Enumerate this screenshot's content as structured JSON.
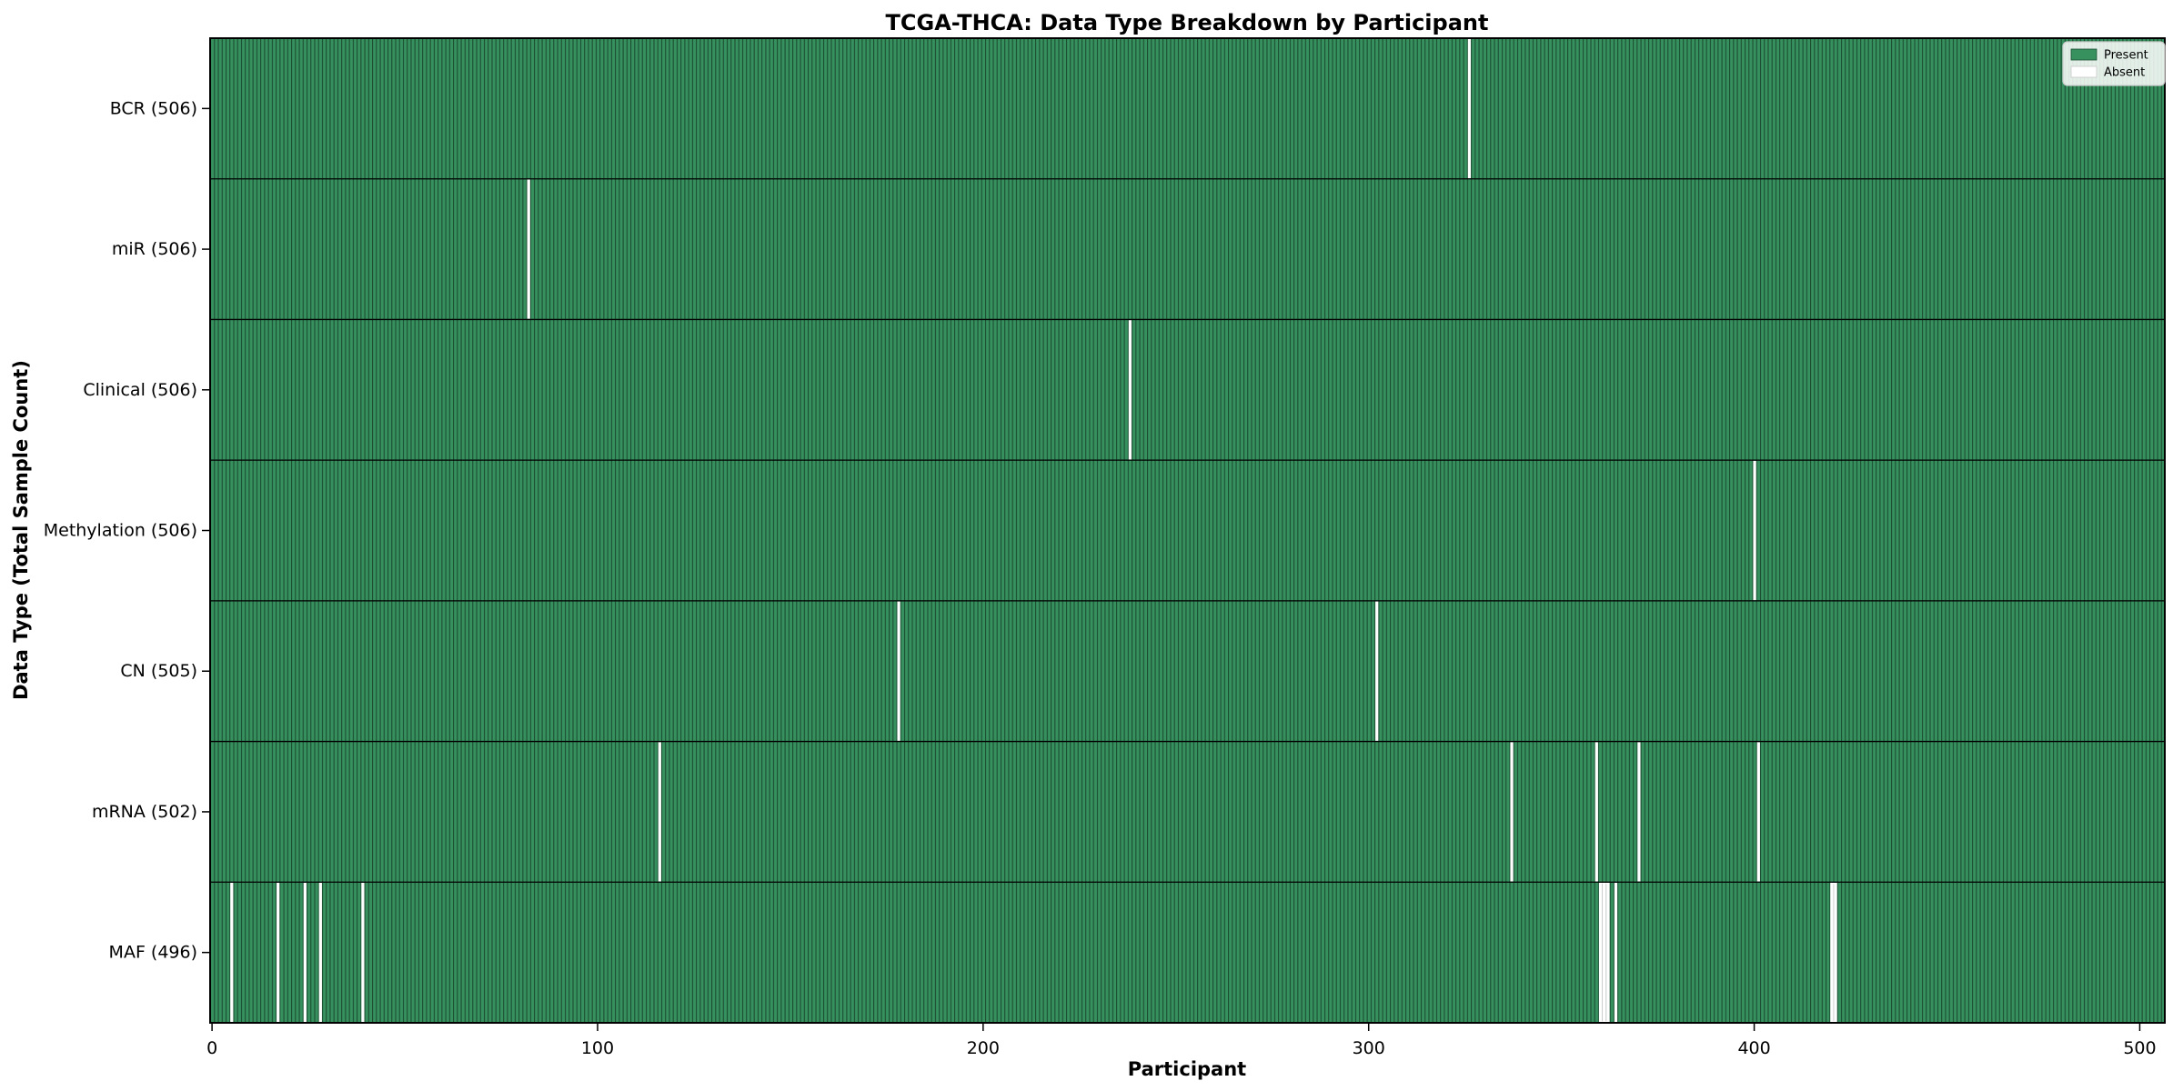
{
  "chart_data": {
    "type": "heatmap",
    "title": "TCGA-THCA: Data Type Breakdown by Participant",
    "xlabel": "Participant",
    "ylabel": "Data Type (Total Sample Count)",
    "n_participants": 507,
    "xlim": [
      -0.5,
      506.5
    ],
    "x_ticks": [
      0,
      100,
      200,
      300,
      400,
      500
    ],
    "grid": false,
    "legend": {
      "position": "upper right",
      "entries": [
        {
          "label": "Present",
          "color": "#36915f"
        },
        {
          "label": "Absent",
          "color": "#ffffff"
        }
      ]
    },
    "rows": [
      {
        "label": "BCR (506)",
        "data_type": "BCR",
        "present_count": 506,
        "absent_participants": [
          326
        ]
      },
      {
        "label": "miR (506)",
        "data_type": "miR",
        "present_count": 506,
        "absent_participants": [
          82
        ]
      },
      {
        "label": "Clinical (506)",
        "data_type": "Clinical",
        "present_count": 506,
        "absent_participants": [
          238
        ]
      },
      {
        "label": "Methylation (506)",
        "data_type": "Methylation",
        "present_count": 506,
        "absent_participants": [
          400
        ]
      },
      {
        "label": "CN (505)",
        "data_type": "CN",
        "present_count": 505,
        "absent_participants": [
          178,
          302
        ]
      },
      {
        "label": "mRNA (502)",
        "data_type": "mRNA",
        "present_count": 502,
        "absent_participants": [
          116,
          337,
          359,
          370,
          401
        ]
      },
      {
        "label": "MAF (496)",
        "data_type": "MAF",
        "present_count": 496,
        "absent_participants": [
          5,
          17,
          24,
          28,
          39,
          360,
          361,
          362,
          364,
          420,
          421
        ]
      }
    ],
    "colors": {
      "present": "#36915f",
      "bar_edge": "#1c4c31",
      "absent": "#ffffff",
      "absent_edge": "#c8c8c8",
      "spine": "#000000",
      "figure_bg": "#ffffff"
    }
  }
}
